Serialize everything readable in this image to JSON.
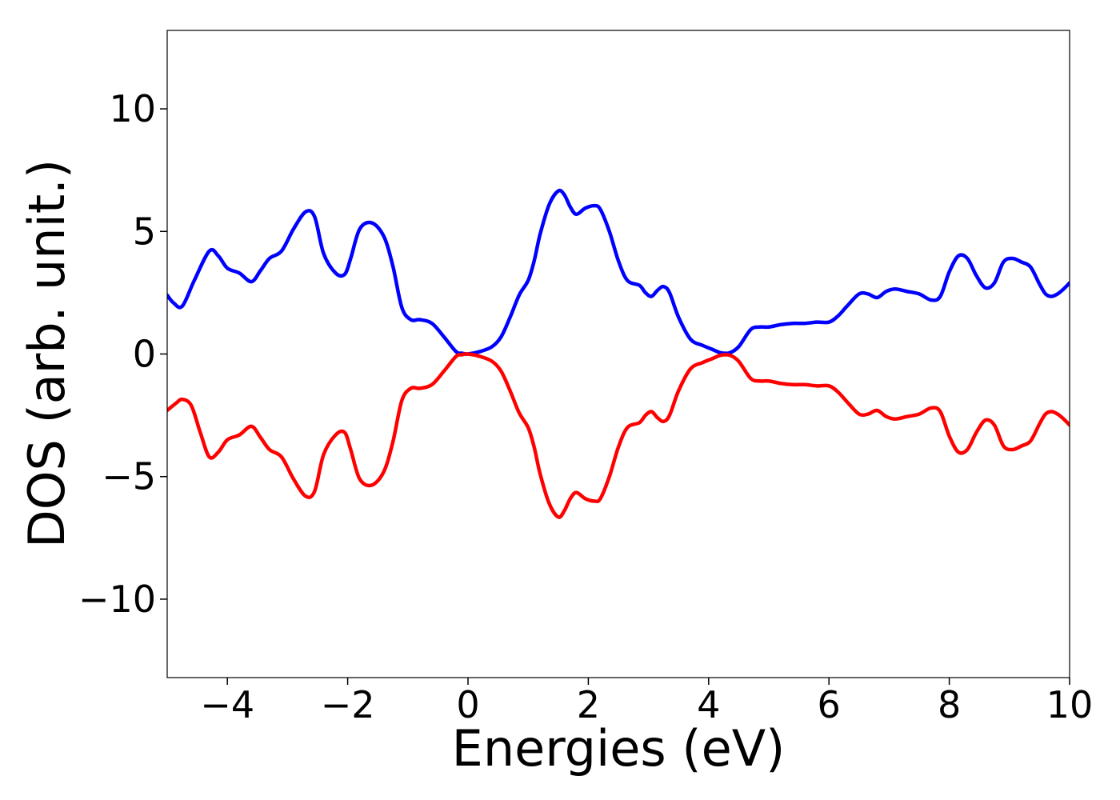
{
  "chart_data": {
    "type": "line",
    "title": "",
    "xlabel": "Energies (eV)",
    "ylabel": "DOS (arb. unit.)",
    "xlim": [
      -5,
      10
    ],
    "ylim": [
      -13.2,
      13.2
    ],
    "xticks": [
      -4,
      -2,
      0,
      2,
      4,
      6,
      8,
      10
    ],
    "xtick_labels": [
      "−4",
      "−2",
      "0",
      "2",
      "4",
      "6",
      "8",
      "10"
    ],
    "yticks": [
      -10,
      -5,
      0,
      5,
      10
    ],
    "ytick_labels": [
      "−10",
      "−5",
      "0",
      "5",
      "10"
    ],
    "grid": false,
    "legend": "none",
    "series": [
      {
        "color": "#0000ff",
        "x": [
          -5.0,
          -4.9,
          -4.75,
          -4.55,
          -4.3,
          -4.15,
          -4.0,
          -3.8,
          -3.6,
          -3.45,
          -3.3,
          -3.1,
          -2.9,
          -2.7,
          -2.55,
          -2.4,
          -2.2,
          -2.05,
          -1.95,
          -1.8,
          -1.6,
          -1.4,
          -1.25,
          -1.1,
          -0.95,
          -0.8,
          -0.6,
          -0.4,
          -0.2,
          -0.1,
          0.0,
          0.2,
          0.4,
          0.55,
          0.7,
          0.85,
          1.0,
          1.1,
          1.2,
          1.35,
          1.5,
          1.6,
          1.7,
          1.8,
          1.95,
          2.1,
          2.2,
          2.35,
          2.5,
          2.65,
          2.85,
          2.95,
          3.05,
          3.15,
          3.25,
          3.35,
          3.5,
          3.7,
          3.9,
          4.05,
          4.2,
          4.35,
          4.5,
          4.7,
          4.85,
          5.0,
          5.2,
          5.4,
          5.6,
          5.8,
          6.0,
          6.15,
          6.3,
          6.5,
          6.65,
          6.8,
          6.95,
          7.1,
          7.3,
          7.5,
          7.7,
          7.85,
          8.0,
          8.15,
          8.3,
          8.45,
          8.6,
          8.75,
          8.9,
          9.05,
          9.2,
          9.35,
          9.5,
          9.6,
          9.7,
          9.8,
          9.9,
          10.0
        ],
        "y": [
          2.4,
          2.1,
          1.95,
          3.0,
          4.2,
          4.0,
          3.5,
          3.3,
          2.95,
          3.4,
          3.9,
          4.2,
          5.1,
          5.8,
          5.6,
          4.1,
          3.3,
          3.25,
          3.9,
          5.1,
          5.35,
          4.8,
          3.6,
          1.9,
          1.4,
          1.4,
          1.25,
          0.7,
          0.1,
          0.03,
          0.0,
          0.1,
          0.3,
          0.7,
          1.5,
          2.4,
          3.0,
          3.8,
          4.9,
          6.1,
          6.65,
          6.5,
          6.0,
          5.7,
          5.95,
          6.05,
          5.9,
          5.0,
          3.8,
          3.0,
          2.8,
          2.5,
          2.35,
          2.6,
          2.75,
          2.5,
          1.5,
          0.6,
          0.35,
          0.2,
          0.05,
          0.05,
          0.3,
          1.0,
          1.1,
          1.1,
          1.2,
          1.25,
          1.25,
          1.3,
          1.3,
          1.55,
          1.95,
          2.45,
          2.45,
          2.3,
          2.55,
          2.65,
          2.55,
          2.45,
          2.2,
          2.35,
          3.35,
          4.0,
          3.9,
          3.2,
          2.7,
          2.9,
          3.75,
          3.9,
          3.75,
          3.55,
          2.85,
          2.45,
          2.35,
          2.45,
          2.65,
          2.9
        ]
      },
      {
        "color": "#ff0000",
        "x": [
          -5.0,
          -4.85,
          -4.75,
          -4.6,
          -4.45,
          -4.3,
          -4.15,
          -4.0,
          -3.8,
          -3.6,
          -3.45,
          -3.3,
          -3.1,
          -2.9,
          -2.7,
          -2.55,
          -2.4,
          -2.2,
          -2.05,
          -1.95,
          -1.8,
          -1.6,
          -1.4,
          -1.25,
          -1.1,
          -0.95,
          -0.8,
          -0.6,
          -0.4,
          -0.2,
          -0.1,
          0.0,
          0.2,
          0.4,
          0.55,
          0.7,
          0.85,
          1.0,
          1.1,
          1.2,
          1.35,
          1.5,
          1.6,
          1.7,
          1.8,
          1.95,
          2.1,
          2.2,
          2.35,
          2.5,
          2.65,
          2.85,
          2.95,
          3.05,
          3.15,
          3.25,
          3.35,
          3.5,
          3.7,
          3.9,
          4.05,
          4.2,
          4.35,
          4.5,
          4.7,
          4.85,
          5.0,
          5.2,
          5.4,
          5.6,
          5.8,
          6.0,
          6.15,
          6.3,
          6.5,
          6.65,
          6.8,
          6.95,
          7.1,
          7.3,
          7.5,
          7.7,
          7.85,
          8.0,
          8.15,
          8.3,
          8.45,
          8.6,
          8.75,
          8.9,
          9.05,
          9.2,
          9.35,
          9.5,
          9.6,
          9.7,
          9.8,
          9.9,
          10.0
        ],
        "y": [
          -2.3,
          -2.0,
          -1.85,
          -2.1,
          -3.2,
          -4.2,
          -4.0,
          -3.5,
          -3.3,
          -2.95,
          -3.4,
          -3.9,
          -4.2,
          -5.1,
          -5.8,
          -5.6,
          -4.1,
          -3.3,
          -3.2,
          -3.9,
          -5.1,
          -5.35,
          -4.8,
          -3.6,
          -1.9,
          -1.4,
          -1.4,
          -1.25,
          -0.7,
          -0.1,
          -0.03,
          0.0,
          -0.1,
          -0.3,
          -0.7,
          -1.5,
          -2.4,
          -3.0,
          -3.8,
          -4.9,
          -6.1,
          -6.65,
          -6.4,
          -5.9,
          -5.65,
          -5.9,
          -6.0,
          -5.9,
          -5.0,
          -3.8,
          -3.0,
          -2.8,
          -2.5,
          -2.35,
          -2.6,
          -2.75,
          -2.5,
          -1.5,
          -0.6,
          -0.35,
          -0.2,
          -0.05,
          -0.05,
          -0.3,
          -1.0,
          -1.1,
          -1.1,
          -1.2,
          -1.25,
          -1.25,
          -1.3,
          -1.3,
          -1.55,
          -1.95,
          -2.45,
          -2.45,
          -2.3,
          -2.55,
          -2.65,
          -2.55,
          -2.45,
          -2.2,
          -2.35,
          -3.35,
          -4.0,
          -3.9,
          -3.2,
          -2.7,
          -2.9,
          -3.75,
          -3.9,
          -3.75,
          -3.55,
          -2.85,
          -2.45,
          -2.35,
          -2.45,
          -2.65,
          -2.9
        ]
      }
    ]
  }
}
